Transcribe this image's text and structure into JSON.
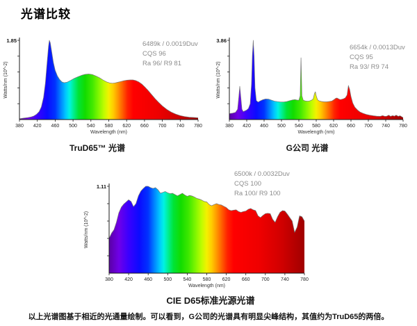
{
  "page": {
    "title": "光谱比较",
    "caption": "以上光谱图基于相近的光通量绘制。可以看到，G公司的光谱具有明显尖峰结构，其值约为TruD65的两倍。"
  },
  "spectrum_gradient": [
    {
      "wl": 380,
      "color": "#5a00a5"
    },
    {
      "wl": 400,
      "color": "#6f00e8"
    },
    {
      "wl": 420,
      "color": "#3a00ff"
    },
    {
      "wl": 442,
      "color": "#0b0bff"
    },
    {
      "wl": 460,
      "color": "#0033ff"
    },
    {
      "wl": 472,
      "color": "#0080ff"
    },
    {
      "wl": 483,
      "color": "#00c4ff"
    },
    {
      "wl": 492,
      "color": "#00f3e4"
    },
    {
      "wl": 500,
      "color": "#00ef9a"
    },
    {
      "wl": 512,
      "color": "#00e436"
    },
    {
      "wl": 527,
      "color": "#12dc00"
    },
    {
      "wl": 543,
      "color": "#3fe800"
    },
    {
      "wl": 557,
      "color": "#80f600"
    },
    {
      "wl": 570,
      "color": "#c2fc00"
    },
    {
      "wl": 580,
      "color": "#f4f000"
    },
    {
      "wl": 590,
      "color": "#ffcc00"
    },
    {
      "wl": 600,
      "color": "#ff9900"
    },
    {
      "wl": 611,
      "color": "#ff5e00"
    },
    {
      "wl": 622,
      "color": "#ff2200"
    },
    {
      "wl": 635,
      "color": "#ff0000"
    },
    {
      "wl": 690,
      "color": "#ee0000"
    },
    {
      "wl": 735,
      "color": "#cf0000"
    },
    {
      "wl": 780,
      "color": "#a00000"
    }
  ],
  "chart_data": [
    {
      "type": "area",
      "id": "trud65",
      "title": "TruD65™ 光谱",
      "xlabel": "Wavelength (nm)",
      "ylabel": "Watts/nm (10^-2)",
      "y_max": 1.85,
      "y_max_label": "1.85",
      "xlim": [
        380,
        780
      ],
      "x_ticks": [
        380,
        420,
        460,
        500,
        540,
        580,
        620,
        660,
        700,
        740,
        780
      ],
      "annotation": [
        "6489k / 0.0019Duv",
        "CQS 96",
        "Ra 96/ R9 81"
      ],
      "x": [
        380,
        390,
        398,
        405,
        412,
        418,
        424,
        429,
        434,
        438,
        442,
        445,
        447,
        449,
        452,
        456,
        460,
        465,
        470,
        475,
        480,
        487,
        495,
        503,
        511,
        519,
        527,
        535,
        543,
        551,
        559,
        567,
        575,
        582,
        588,
        594,
        600,
        607,
        614,
        621,
        628,
        634,
        640,
        647,
        654,
        661,
        668,
        676,
        684,
        692,
        700,
        710,
        720,
        730,
        740,
        750,
        760,
        770,
        780
      ],
      "y_rel": [
        0.01,
        0.018,
        0.025,
        0.032,
        0.045,
        0.065,
        0.1,
        0.16,
        0.28,
        0.46,
        0.72,
        0.92,
        1.0,
        0.97,
        0.86,
        0.72,
        0.62,
        0.55,
        0.505,
        0.475,
        0.465,
        0.472,
        0.495,
        0.52,
        0.54,
        0.558,
        0.57,
        0.575,
        0.568,
        0.55,
        0.528,
        0.5,
        0.475,
        0.462,
        0.458,
        0.462,
        0.47,
        0.48,
        0.49,
        0.497,
        0.5,
        0.5,
        0.493,
        0.475,
        0.448,
        0.41,
        0.368,
        0.315,
        0.262,
        0.215,
        0.172,
        0.128,
        0.094,
        0.068,
        0.05,
        0.038,
        0.03,
        0.026,
        0.022
      ]
    },
    {
      "type": "area",
      "id": "gcompany",
      "title": "G公司 光谱",
      "xlabel": "Wavelength (nm)",
      "ylabel": "Watts/nm (10^-2)",
      "y_max": 3.86,
      "y_max_label": "3.86",
      "xlim": [
        380,
        780
      ],
      "x_ticks": [
        380,
        420,
        460,
        500,
        540,
        580,
        620,
        660,
        700,
        740,
        780
      ],
      "annotation": [
        "6654k / 0.0013Duv",
        "CQS 95",
        "Ra 93/ R9 74"
      ],
      "x": [
        380,
        388,
        394,
        399,
        402,
        404,
        406,
        409,
        412,
        416,
        420,
        424,
        428,
        431,
        433,
        435,
        437,
        439,
        442,
        446,
        451,
        457,
        463,
        470,
        477,
        484,
        491,
        498,
        505,
        512,
        519,
        526,
        531,
        536,
        540,
        543,
        545,
        547,
        550,
        554,
        559,
        564,
        569,
        573,
        576,
        578,
        580,
        583,
        587,
        592,
        598,
        604,
        610,
        616,
        621,
        625,
        628,
        631,
        635,
        639,
        643,
        647,
        651,
        654,
        657,
        660,
        664,
        669,
        675,
        681,
        688,
        695,
        703,
        711,
        719,
        727,
        733,
        738,
        742,
        747,
        751,
        756,
        760,
        764,
        769,
        773,
        777,
        780
      ],
      "y_rel": [
        0.075,
        0.082,
        0.09,
        0.13,
        0.3,
        0.42,
        0.3,
        0.13,
        0.1,
        0.11,
        0.12,
        0.14,
        0.2,
        0.45,
        0.8,
        1.0,
        0.8,
        0.4,
        0.24,
        0.22,
        0.235,
        0.25,
        0.26,
        0.258,
        0.245,
        0.232,
        0.226,
        0.222,
        0.222,
        0.227,
        0.238,
        0.248,
        0.252,
        0.246,
        0.244,
        0.3,
        0.78,
        0.3,
        0.245,
        0.236,
        0.232,
        0.234,
        0.244,
        0.26,
        0.33,
        0.35,
        0.3,
        0.25,
        0.235,
        0.228,
        0.224,
        0.224,
        0.228,
        0.234,
        0.252,
        0.268,
        0.272,
        0.262,
        0.252,
        0.256,
        0.262,
        0.275,
        0.31,
        0.43,
        0.38,
        0.29,
        0.21,
        0.155,
        0.12,
        0.095,
        0.078,
        0.065,
        0.055,
        0.048,
        0.043,
        0.04,
        0.05,
        0.04,
        0.042,
        0.055,
        0.04,
        0.05,
        0.042,
        0.055,
        0.04,
        0.048,
        0.035,
        0.025
      ]
    },
    {
      "type": "area",
      "id": "cied65",
      "title": "CIE D65标准光源光谱",
      "xlabel": "Wavelength (nm)",
      "ylabel": "Watts/nm (10^-2)",
      "y_max": 1.11,
      "y_max_label": "1.11",
      "xlim": [
        380,
        780
      ],
      "x_ticks": [
        380,
        420,
        460,
        500,
        540,
        580,
        620,
        660,
        700,
        740,
        780
      ],
      "annotation": [
        "6500k / 0.0032Duv",
        "CQS 100",
        "Ra 100/ R9 100"
      ],
      "x": [
        380,
        385,
        390,
        395,
        400,
        405,
        410,
        415,
        420,
        425,
        430,
        435,
        440,
        445,
        450,
        455,
        460,
        465,
        470,
        475,
        480,
        485,
        490,
        495,
        500,
        505,
        510,
        515,
        520,
        525,
        530,
        535,
        540,
        545,
        550,
        555,
        560,
        565,
        570,
        575,
        580,
        585,
        590,
        595,
        600,
        605,
        610,
        615,
        620,
        625,
        630,
        635,
        640,
        645,
        650,
        655,
        660,
        665,
        670,
        675,
        680,
        685,
        690,
        695,
        700,
        705,
        710,
        715,
        720,
        725,
        730,
        735,
        740,
        745,
        750,
        755,
        760,
        765,
        770,
        775,
        780
      ],
      "y_rel": [
        0.4,
        0.46,
        0.5,
        0.585,
        0.695,
        0.76,
        0.795,
        0.82,
        0.845,
        0.825,
        0.765,
        0.8,
        0.89,
        0.945,
        0.975,
        1.0,
        1.0,
        0.985,
        0.975,
        0.985,
        0.96,
        0.92,
        0.93,
        0.94,
        0.925,
        0.915,
        0.92,
        0.905,
        0.89,
        0.905,
        0.92,
        0.9,
        0.885,
        0.895,
        0.888,
        0.875,
        0.86,
        0.852,
        0.84,
        0.825,
        0.82,
        0.79,
        0.775,
        0.79,
        0.8,
        0.79,
        0.785,
        0.77,
        0.755,
        0.73,
        0.72,
        0.725,
        0.73,
        0.71,
        0.7,
        0.71,
        0.715,
        0.735,
        0.745,
        0.73,
        0.72,
        0.66,
        0.64,
        0.665,
        0.685,
        0.69,
        0.685,
        0.62,
        0.585,
        0.65,
        0.7,
        0.72,
        0.715,
        0.68,
        0.64,
        0.6,
        0.47,
        0.53,
        0.66,
        0.65,
        0.6
      ]
    }
  ]
}
